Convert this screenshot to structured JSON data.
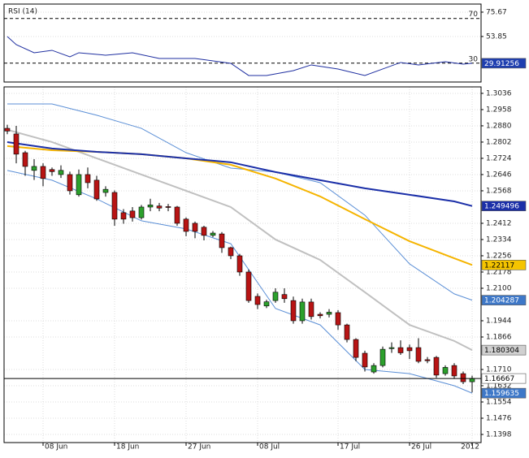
{
  "chart_data": [
    {
      "type": "line",
      "title": "RSI (14)",
      "x": [
        0,
        1,
        3,
        5,
        7,
        8,
        11,
        14,
        17,
        21,
        25,
        27,
        29,
        32,
        34,
        37,
        40,
        42,
        44,
        46,
        49,
        51,
        52
      ],
      "values": [
        53.85,
        46.58,
        39.3,
        41.49,
        35.67,
        39.3,
        37.12,
        39.3,
        34.21,
        34.21,
        29.85,
        18.94,
        18.94,
        23.3,
        28.4,
        24.76,
        18.94,
        24.76,
        30.58,
        28.4,
        31.3,
        29.12,
        29.91256
      ],
      "color": "#1f2fa0",
      "ylim": [
        13.1,
        82.9
      ],
      "yticks": [
        75.67,
        53.85
      ],
      "levels": [
        70,
        30
      ],
      "grid": true,
      "last_box": {
        "color": "#1f3fb0",
        "text_color": "#ffffff"
      }
    },
    {
      "type": "candlestick",
      "categories": [
        null,
        null,
        null,
        null,
        "08 Jun",
        null,
        null,
        null,
        null,
        null,
        null,
        null,
        "18 Jun",
        null,
        null,
        null,
        null,
        null,
        null,
        null,
        "27 Jun",
        null,
        null,
        null,
        null,
        null,
        null,
        null,
        "08 Jul",
        null,
        null,
        null,
        null,
        null,
        null,
        null,
        null,
        "17 Jul",
        null,
        null,
        null,
        null,
        null,
        null,
        null,
        "26 Jul",
        null,
        null,
        null,
        null,
        null,
        null,
        "2012"
      ],
      "open": [
        1.2868,
        1.2841,
        1.2751,
        1.2666,
        1.2685,
        1.267,
        1.2646,
        1.2646,
        1.2549,
        1.2646,
        1.2619,
        1.256,
        1.256,
        1.2463,
        1.2471,
        1.2439,
        1.249,
        1.2495,
        1.2492,
        1.249,
        1.2432,
        1.2412,
        1.2393,
        1.2354,
        1.2361,
        1.2295,
        1.2256,
        1.2178,
        1.2061,
        1.2015,
        1.2041,
        1.207,
        1.2041,
        1.1944,
        1.2034,
        1.1975,
        1.1975,
        1.1983,
        1.1924,
        1.1854,
        1.1788,
        1.1698,
        1.1729,
        1.181,
        1.1815,
        1.1815,
        1.1815,
        1.1757,
        1.1768,
        1.169,
        1.1729,
        1.169,
        1.1651
      ],
      "high": [
        1.2885,
        1.288,
        1.276,
        1.272,
        1.27,
        1.268,
        1.269,
        1.266,
        1.267,
        1.268,
        1.264,
        1.259,
        1.257,
        1.248,
        1.249,
        1.25,
        1.253,
        1.251,
        1.2505,
        1.2495,
        1.244,
        1.242,
        1.24,
        1.2375,
        1.237,
        1.23,
        1.2265,
        1.219,
        1.2075,
        1.2045,
        1.21,
        1.21,
        1.206,
        1.205,
        1.205,
        1.1985,
        1.2,
        1.1995,
        1.193,
        1.186,
        1.18,
        1.174,
        1.182,
        1.184,
        1.185,
        1.183,
        1.186,
        1.177,
        1.1775,
        1.173,
        1.174,
        1.17,
        1.168
      ],
      "low": [
        1.284,
        1.27,
        1.264,
        1.262,
        1.259,
        1.264,
        1.263,
        1.255,
        1.254,
        1.258,
        1.252,
        1.254,
        1.24,
        1.241,
        1.242,
        1.243,
        1.247,
        1.247,
        1.247,
        1.24,
        1.235,
        1.234,
        1.233,
        1.2345,
        1.227,
        1.224,
        1.216,
        1.203,
        1.2,
        1.2005,
        1.203,
        1.203,
        1.193,
        1.193,
        1.195,
        1.1955,
        1.196,
        1.19,
        1.184,
        1.175,
        1.17,
        1.169,
        1.172,
        1.179,
        1.178,
        1.176,
        1.174,
        1.174,
        1.167,
        1.168,
        1.1665,
        1.164,
        1.16
      ],
      "close": [
        1.2855,
        1.2744,
        1.2685,
        1.2685,
        1.2627,
        1.266,
        1.2666,
        1.2568,
        1.2646,
        1.2607,
        1.2529,
        1.2575,
        1.2432,
        1.2432,
        1.2439,
        1.249,
        1.25,
        1.2485,
        1.2488,
        1.2412,
        1.2373,
        1.2373,
        1.2354,
        1.2365,
        1.2295,
        1.2256,
        1.2178,
        1.2041,
        1.2022,
        1.2035,
        1.2081,
        1.205,
        1.1944,
        1.2034,
        1.1964,
        1.1968,
        1.1985,
        1.1924,
        1.1854,
        1.1768,
        1.1722,
        1.1729,
        1.1807,
        1.1815,
        1.179,
        1.18,
        1.1749,
        1.1752,
        1.1683,
        1.172,
        1.1679,
        1.1651,
        1.16667
      ],
      "up_color": "#2ca02c",
      "down_color": "#b81414",
      "ylim": [
        1.1359,
        1.3067
      ],
      "yticks": [
        1.3036,
        1.2958,
        {
          "value": 1.288,
          "label": "1.2880"
        },
        1.2802,
        1.2724,
        1.2646,
        1.2568,
        1.2412,
        1.2334,
        1.2256,
        1.2178,
        {
          "value": 1.21,
          "label": "1.2100"
        },
        1.1944,
        1.1866,
        {
          "value": 1.171,
          "label": "1.1710"
        },
        1.1632,
        1.1554,
        1.1476,
        1.1398
      ],
      "grid": true,
      "last_line": true,
      "last_box": {
        "color": "#ffffff",
        "text_color": "#000000"
      },
      "overlays": [
        {
          "color": "#5b8fd6",
          "width": 1,
          "x": [
            0,
            5,
            10,
            15,
            20,
            25,
            30,
            35,
            40,
            45,
            50,
            52
          ],
          "values": [
            1.2985,
            1.2985,
            1.2931,
            1.2868,
            1.2751,
            1.2677,
            1.2658,
            1.2607,
            1.2451,
            1.2217,
            1.2073,
            1.204287
          ],
          "box": {
            "color": "#3e78c8",
            "text_color": "#ffffff"
          }
        },
        {
          "color": "#5b8fd6",
          "width": 1,
          "x": [
            0,
            5,
            10,
            15,
            20,
            25,
            30,
            35,
            40,
            45,
            50,
            52
          ],
          "values": [
            1.2666,
            1.2619,
            1.2529,
            1.2424,
            1.2385,
            1.2314,
            1.2003,
            1.1924,
            1.171,
            1.169,
            1.1632,
            1.159635
          ],
          "box": {
            "color": "#3e78c8",
            "text_color": "#ffffff"
          }
        },
        {
          "color": "#c0c0c0",
          "width": 2,
          "x": [
            0,
            5,
            10,
            15,
            20,
            25,
            30,
            35,
            40,
            45,
            50,
            52
          ],
          "values": [
            1.2861,
            1.2802,
            1.2724,
            1.2646,
            1.2568,
            1.249,
            1.2334,
            1.2236,
            1.2081,
            1.1924,
            1.1847,
            1.180304
          ],
          "box": {
            "color": "#d0d0d0",
            "text_color": "#000000"
          }
        },
        {
          "color": "#f5b400",
          "width": 2,
          "x": [
            0,
            5,
            10,
            15,
            20,
            25,
            30,
            35,
            40,
            45,
            50,
            52
          ],
          "values": [
            1.2783,
            1.2763,
            1.2755,
            1.2744,
            1.2724,
            1.2693,
            1.2627,
            1.2541,
            1.2432,
            1.2326,
            1.2244,
            1.22117
          ],
          "box": {
            "color": "#f5c400",
            "text_color": "#000000"
          }
        },
        {
          "color": "#1b2fa8",
          "width": 2,
          "x": [
            0,
            5,
            10,
            15,
            20,
            25,
            30,
            35,
            40,
            45,
            50,
            52
          ],
          "values": [
            1.2802,
            1.2771,
            1.2755,
            1.2744,
            1.2724,
            1.2705,
            1.2658,
            1.2619,
            1.258,
            1.2549,
            1.2517,
            1.249496
          ],
          "box": {
            "color": "#1b2fa8",
            "text_color": "#ffffff"
          }
        }
      ]
    }
  ]
}
